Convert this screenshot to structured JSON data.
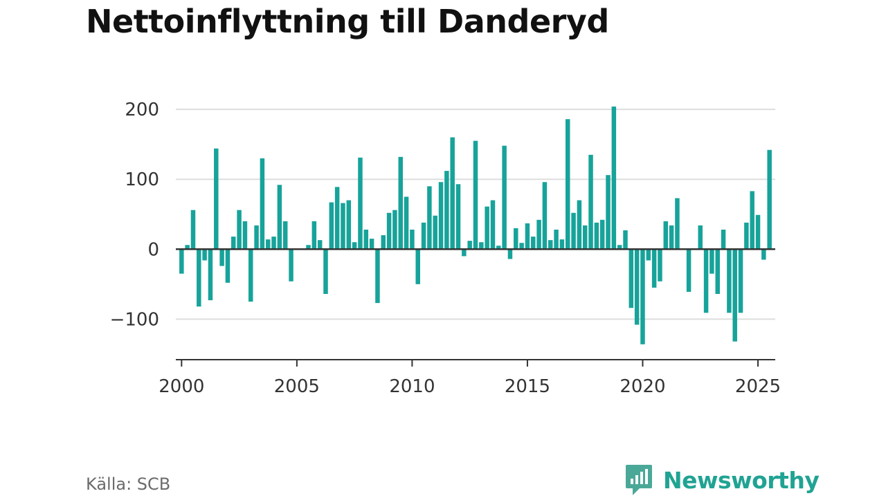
{
  "title": "Nettoinflyttning till Danderyd",
  "source": "Källa: SCB",
  "brand": {
    "name": "Newsworthy",
    "icon": "newsworthy-logo-icon"
  },
  "colors": {
    "bar": "#17a39a",
    "grid": "#dddddd",
    "axis": "#333333",
    "brand": "#20a393"
  },
  "chart_data": {
    "type": "bar",
    "title": "Nettoinflyttning till Danderyd",
    "xlabel": "",
    "ylabel": "",
    "ylim": [
      -158,
      210
    ],
    "xlim": [
      1999.75,
      2025.75
    ],
    "grid": true,
    "legend": "none",
    "y_ticks": [
      200,
      100,
      0,
      -100
    ],
    "y_tick_labels": [
      "200",
      "100",
      "0",
      "−100"
    ],
    "x_ticks": [
      2000,
      2005,
      2010,
      2015,
      2020,
      2025
    ],
    "x_tick_labels": [
      "2000",
      "2005",
      "2010",
      "2015",
      "2020",
      "2025"
    ],
    "period": "quarter",
    "start": "2000-Q1",
    "values": [
      -35,
      6,
      56,
      -82,
      -16,
      -73,
      144,
      -24,
      -48,
      18,
      56,
      40,
      -75,
      34,
      130,
      14,
      18,
      92,
      40,
      -46,
      0,
      0,
      6,
      40,
      13,
      -64,
      67,
      89,
      66,
      70,
      10,
      131,
      28,
      15,
      -77,
      20,
      52,
      56,
      132,
      75,
      28,
      -50,
      38,
      90,
      48,
      96,
      112,
      160,
      93,
      -10,
      12,
      155,
      10,
      61,
      70,
      5,
      148,
      -14,
      30,
      9,
      37,
      18,
      42,
      96,
      13,
      28,
      14,
      186,
      52,
      70,
      34,
      135,
      38,
      42,
      106,
      204,
      6,
      27,
      -84,
      -108,
      -136,
      -16,
      -55,
      -46,
      40,
      34,
      73,
      0,
      -61,
      0,
      34,
      -91,
      -35,
      -64,
      28,
      -91,
      -132,
      -91,
      38,
      83,
      49,
      -15,
      142
    ]
  }
}
